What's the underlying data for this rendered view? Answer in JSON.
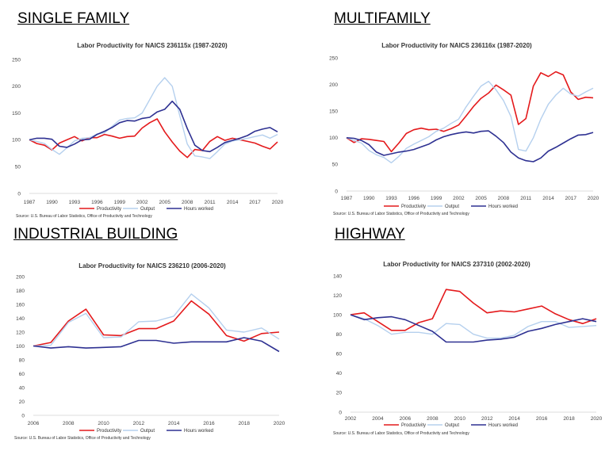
{
  "colors": {
    "productivity": "#e41a1c",
    "output": "#b5d0ee",
    "hours_worked": "#2e3192"
  },
  "chart_data": [
    {
      "type": "line",
      "heading": "SINGLE FAMILY",
      "title": "Labor Productivity for NAICS 236115x  (1987-2020)",
      "xlabel": "",
      "ylabel": "",
      "x": [
        1987,
        1988,
        1989,
        1990,
        1991,
        1992,
        1993,
        1994,
        1995,
        1996,
        1997,
        1998,
        1999,
        2000,
        2001,
        2002,
        2003,
        2004,
        2005,
        2006,
        2007,
        2008,
        2009,
        2010,
        2011,
        2012,
        2013,
        2014,
        2015,
        2016,
        2017,
        2018,
        2019,
        2020
      ],
      "xticks": [
        "1987",
        "1990",
        "1993",
        "1996",
        "1999",
        "2002",
        "2005",
        "2008",
        "2011",
        "2014",
        "2017",
        "2020"
      ],
      "ylim": [
        0,
        250
      ],
      "yticks": [
        "0",
        "50",
        "100",
        "150",
        "200",
        "250"
      ],
      "series": [
        {
          "name": "Productivity",
          "color": "#e41a1c",
          "values": [
            100,
            93,
            90,
            81,
            94,
            100,
            106,
            98,
            104,
            104,
            110,
            107,
            103,
            106,
            107,
            122,
            132,
            139,
            115,
            96,
            79,
            67,
            82,
            80,
            97,
            106,
            99,
            103,
            100,
            97,
            94,
            88,
            83,
            96
          ]
        },
        {
          "name": "Output",
          "color": "#b5d0ee",
          "values": [
            100,
            97,
            93,
            82,
            73,
            85,
            98,
            103,
            104,
            111,
            113,
            125,
            137,
            140,
            141,
            150,
            175,
            200,
            216,
            200,
            145,
            92,
            70,
            68,
            65,
            78,
            92,
            98,
            100,
            103,
            106,
            109,
            103,
            110
          ]
        },
        {
          "name": "Hours worked",
          "color": "#2e3192",
          "values": [
            100,
            103,
            103,
            101,
            88,
            86,
            92,
            100,
            101,
            110,
            116,
            123,
            132,
            136,
            135,
            140,
            142,
            152,
            157,
            172,
            157,
            121,
            90,
            80,
            78,
            86,
            95,
            99,
            103,
            108,
            116,
            120,
            123,
            115
          ]
        }
      ],
      "legend": [
        "Productivity",
        "Output",
        "Hours worked"
      ],
      "legend_position": "bottom",
      "source": "Source:  U.S. Bureau of Labor Statistics, Office of Productivity and Technology"
    },
    {
      "type": "line",
      "heading": "MULTIFAMILY",
      "title": "Labor Productivity for NAICS 236116x  (1987-2020)",
      "xlabel": "",
      "ylabel": "",
      "x": [
        1987,
        1988,
        1989,
        1990,
        1991,
        1992,
        1993,
        1994,
        1995,
        1996,
        1997,
        1998,
        1999,
        2000,
        2001,
        2002,
        2003,
        2004,
        2005,
        2006,
        2007,
        2008,
        2009,
        2010,
        2011,
        2012,
        2013,
        2014,
        2015,
        2016,
        2017,
        2018,
        2019,
        2020
      ],
      "xticks": [
        "1987",
        "1990",
        "1993",
        "1996",
        "1999",
        "2002",
        "2005",
        "2008",
        "2011",
        "2014",
        "2017",
        "2020"
      ],
      "ylim": [
        0,
        250
      ],
      "yticks": [
        "0",
        "50",
        "100",
        "150",
        "200",
        "250"
      ],
      "series": [
        {
          "name": "Productivity",
          "color": "#e41a1c",
          "values": [
            100,
            91,
            98,
            97,
            95,
            93,
            74,
            90,
            108,
            115,
            118,
            115,
            116,
            112,
            117,
            124,
            141,
            159,
            174,
            184,
            199,
            190,
            180,
            125,
            136,
            197,
            222,
            215,
            224,
            218,
            186,
            172,
            176,
            175
          ]
        },
        {
          "name": "Output",
          "color": "#b5d0ee",
          "values": [
            100,
            95,
            90,
            76,
            68,
            63,
            53,
            65,
            80,
            88,
            95,
            102,
            112,
            118,
            127,
            135,
            158,
            178,
            197,
            206,
            190,
            170,
            140,
            78,
            75,
            100,
            135,
            163,
            180,
            193,
            182,
            178,
            186,
            193
          ]
        },
        {
          "name": "Hours worked",
          "color": "#2e3192",
          "values": [
            100,
            99,
            95,
            87,
            73,
            67,
            70,
            73,
            75,
            78,
            83,
            88,
            96,
            102,
            106,
            109,
            111,
            109,
            112,
            113,
            103,
            91,
            73,
            62,
            57,
            55,
            62,
            75,
            82,
            90,
            98,
            105,
            106,
            110
          ]
        }
      ],
      "legend": [
        "Productivity",
        "Output",
        "Hours worked"
      ],
      "legend_position": "bottom",
      "source": "Source:  U.S. Bureau of Labor Statistics, Office of Productivity and Technology"
    },
    {
      "type": "line",
      "heading": "INDUSTRIAL BUILDING",
      "title": "Labor Productivity for NAICS 236210  (2006-2020)",
      "xlabel": "",
      "ylabel": "",
      "x": [
        2006,
        2007,
        2008,
        2009,
        2010,
        2011,
        2012,
        2013,
        2014,
        2015,
        2016,
        2017,
        2018,
        2019,
        2020
      ],
      "xticks": [
        "2006",
        "2008",
        "2010",
        "2012",
        "2014",
        "2016",
        "2018",
        "2020"
      ],
      "ylim": [
        0,
        200
      ],
      "yticks": [
        "0",
        "20",
        "40",
        "60",
        "80",
        "100",
        "120",
        "140",
        "160",
        "180",
        "200"
      ],
      "series": [
        {
          "name": "Productivity",
          "color": "#e41a1c",
          "values": [
            100,
            105,
            136,
            153,
            116,
            115,
            125,
            125,
            136,
            165,
            146,
            115,
            107,
            118,
            120
          ]
        },
        {
          "name": "Output",
          "color": "#b5d0ee",
          "values": [
            100,
            101,
            134,
            147,
            112,
            113,
            135,
            136,
            143,
            175,
            155,
            123,
            120,
            126,
            110
          ]
        },
        {
          "name": "Hours worked",
          "color": "#2e3192",
          "values": [
            100,
            97,
            99,
            97,
            98,
            99,
            108,
            108,
            104,
            106,
            106,
            106,
            112,
            107,
            92
          ]
        }
      ],
      "legend": [
        "Productivity",
        "Output",
        "Hours worked"
      ],
      "legend_position": "bottom",
      "source": "Source:  U.S. Bureau of Labor Statistics, Office of Productivity and Technology"
    },
    {
      "type": "line",
      "heading": "HIGHWAY",
      "title": "Labor Productivity for NAICS 237310  (2002-2020)",
      "xlabel": "",
      "ylabel": "",
      "x": [
        2002,
        2003,
        2004,
        2005,
        2006,
        2007,
        2008,
        2009,
        2010,
        2011,
        2012,
        2013,
        2014,
        2015,
        2016,
        2017,
        2018,
        2019,
        2020
      ],
      "xticks": [
        "2002",
        "2004",
        "2006",
        "2008",
        "2010",
        "2012",
        "2014",
        "2016",
        "2018",
        "2020"
      ],
      "ylim": [
        0,
        140
      ],
      "yticks": [
        "0",
        "20",
        "40",
        "60",
        "80",
        "100",
        "120",
        "140"
      ],
      "series": [
        {
          "name": "Productivity",
          "color": "#e41a1c",
          "values": [
            100,
            102,
            93,
            84,
            84,
            92,
            96,
            126,
            124,
            112,
            102,
            104,
            103,
            106,
            109,
            101,
            95,
            91,
            96
          ]
        },
        {
          "name": "Output",
          "color": "#b5d0ee",
          "values": [
            100,
            96,
            89,
            80,
            82,
            82,
            80,
            91,
            90,
            80,
            76,
            76,
            79,
            88,
            93,
            93,
            87,
            88,
            89
          ]
        },
        {
          "name": "Hours worked",
          "color": "#2e3192",
          "values": [
            100,
            95,
            97,
            98,
            95,
            89,
            83,
            72,
            72,
            72,
            74,
            75,
            77,
            83,
            86,
            90,
            93,
            96,
            93
          ]
        }
      ],
      "legend": [
        "Productivity",
        "Output",
        "Hours worked"
      ],
      "legend_position": "bottom",
      "source": "Source:  U.S. Bureau of Labor Statistics, Office of Productivity and Technology"
    }
  ]
}
